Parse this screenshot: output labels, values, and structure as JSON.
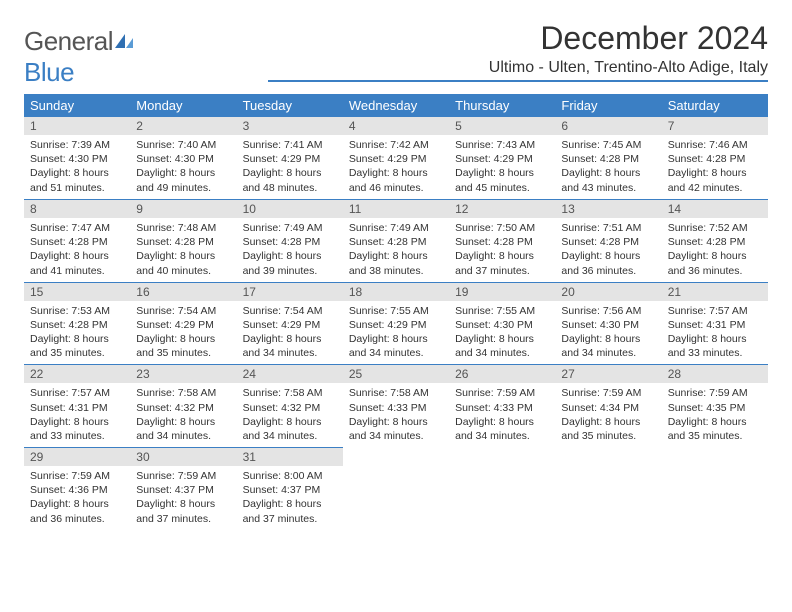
{
  "brand": {
    "part1": "General",
    "part2": "Blue"
  },
  "title": "December 2024",
  "location": "Ultimo - Ulten, Trentino-Alto Adige, Italy",
  "colors": {
    "accent": "#3b7fc4",
    "header_bg": "#3b7fc4",
    "daynum_bg": "#e4e4e4"
  },
  "weekdays": [
    "Sunday",
    "Monday",
    "Tuesday",
    "Wednesday",
    "Thursday",
    "Friday",
    "Saturday"
  ],
  "weeks": [
    [
      {
        "day": "1",
        "sunrise": "Sunrise: 7:39 AM",
        "sunset": "Sunset: 4:30 PM",
        "daylight": "Daylight: 8 hours and 51 minutes."
      },
      {
        "day": "2",
        "sunrise": "Sunrise: 7:40 AM",
        "sunset": "Sunset: 4:30 PM",
        "daylight": "Daylight: 8 hours and 49 minutes."
      },
      {
        "day": "3",
        "sunrise": "Sunrise: 7:41 AM",
        "sunset": "Sunset: 4:29 PM",
        "daylight": "Daylight: 8 hours and 48 minutes."
      },
      {
        "day": "4",
        "sunrise": "Sunrise: 7:42 AM",
        "sunset": "Sunset: 4:29 PM",
        "daylight": "Daylight: 8 hours and 46 minutes."
      },
      {
        "day": "5",
        "sunrise": "Sunrise: 7:43 AM",
        "sunset": "Sunset: 4:29 PM",
        "daylight": "Daylight: 8 hours and 45 minutes."
      },
      {
        "day": "6",
        "sunrise": "Sunrise: 7:45 AM",
        "sunset": "Sunset: 4:28 PM",
        "daylight": "Daylight: 8 hours and 43 minutes."
      },
      {
        "day": "7",
        "sunrise": "Sunrise: 7:46 AM",
        "sunset": "Sunset: 4:28 PM",
        "daylight": "Daylight: 8 hours and 42 minutes."
      }
    ],
    [
      {
        "day": "8",
        "sunrise": "Sunrise: 7:47 AM",
        "sunset": "Sunset: 4:28 PM",
        "daylight": "Daylight: 8 hours and 41 minutes."
      },
      {
        "day": "9",
        "sunrise": "Sunrise: 7:48 AM",
        "sunset": "Sunset: 4:28 PM",
        "daylight": "Daylight: 8 hours and 40 minutes."
      },
      {
        "day": "10",
        "sunrise": "Sunrise: 7:49 AM",
        "sunset": "Sunset: 4:28 PM",
        "daylight": "Daylight: 8 hours and 39 minutes."
      },
      {
        "day": "11",
        "sunrise": "Sunrise: 7:49 AM",
        "sunset": "Sunset: 4:28 PM",
        "daylight": "Daylight: 8 hours and 38 minutes."
      },
      {
        "day": "12",
        "sunrise": "Sunrise: 7:50 AM",
        "sunset": "Sunset: 4:28 PM",
        "daylight": "Daylight: 8 hours and 37 minutes."
      },
      {
        "day": "13",
        "sunrise": "Sunrise: 7:51 AM",
        "sunset": "Sunset: 4:28 PM",
        "daylight": "Daylight: 8 hours and 36 minutes."
      },
      {
        "day": "14",
        "sunrise": "Sunrise: 7:52 AM",
        "sunset": "Sunset: 4:28 PM",
        "daylight": "Daylight: 8 hours and 36 minutes."
      }
    ],
    [
      {
        "day": "15",
        "sunrise": "Sunrise: 7:53 AM",
        "sunset": "Sunset: 4:28 PM",
        "daylight": "Daylight: 8 hours and 35 minutes."
      },
      {
        "day": "16",
        "sunrise": "Sunrise: 7:54 AM",
        "sunset": "Sunset: 4:29 PM",
        "daylight": "Daylight: 8 hours and 35 minutes."
      },
      {
        "day": "17",
        "sunrise": "Sunrise: 7:54 AM",
        "sunset": "Sunset: 4:29 PM",
        "daylight": "Daylight: 8 hours and 34 minutes."
      },
      {
        "day": "18",
        "sunrise": "Sunrise: 7:55 AM",
        "sunset": "Sunset: 4:29 PM",
        "daylight": "Daylight: 8 hours and 34 minutes."
      },
      {
        "day": "19",
        "sunrise": "Sunrise: 7:55 AM",
        "sunset": "Sunset: 4:30 PM",
        "daylight": "Daylight: 8 hours and 34 minutes."
      },
      {
        "day": "20",
        "sunrise": "Sunrise: 7:56 AM",
        "sunset": "Sunset: 4:30 PM",
        "daylight": "Daylight: 8 hours and 34 minutes."
      },
      {
        "day": "21",
        "sunrise": "Sunrise: 7:57 AM",
        "sunset": "Sunset: 4:31 PM",
        "daylight": "Daylight: 8 hours and 33 minutes."
      }
    ],
    [
      {
        "day": "22",
        "sunrise": "Sunrise: 7:57 AM",
        "sunset": "Sunset: 4:31 PM",
        "daylight": "Daylight: 8 hours and 33 minutes."
      },
      {
        "day": "23",
        "sunrise": "Sunrise: 7:58 AM",
        "sunset": "Sunset: 4:32 PM",
        "daylight": "Daylight: 8 hours and 34 minutes."
      },
      {
        "day": "24",
        "sunrise": "Sunrise: 7:58 AM",
        "sunset": "Sunset: 4:32 PM",
        "daylight": "Daylight: 8 hours and 34 minutes."
      },
      {
        "day": "25",
        "sunrise": "Sunrise: 7:58 AM",
        "sunset": "Sunset: 4:33 PM",
        "daylight": "Daylight: 8 hours and 34 minutes."
      },
      {
        "day": "26",
        "sunrise": "Sunrise: 7:59 AM",
        "sunset": "Sunset: 4:33 PM",
        "daylight": "Daylight: 8 hours and 34 minutes."
      },
      {
        "day": "27",
        "sunrise": "Sunrise: 7:59 AM",
        "sunset": "Sunset: 4:34 PM",
        "daylight": "Daylight: 8 hours and 35 minutes."
      },
      {
        "day": "28",
        "sunrise": "Sunrise: 7:59 AM",
        "sunset": "Sunset: 4:35 PM",
        "daylight": "Daylight: 8 hours and 35 minutes."
      }
    ],
    [
      {
        "day": "29",
        "sunrise": "Sunrise: 7:59 AM",
        "sunset": "Sunset: 4:36 PM",
        "daylight": "Daylight: 8 hours and 36 minutes."
      },
      {
        "day": "30",
        "sunrise": "Sunrise: 7:59 AM",
        "sunset": "Sunset: 4:37 PM",
        "daylight": "Daylight: 8 hours and 37 minutes."
      },
      {
        "day": "31",
        "sunrise": "Sunrise: 8:00 AM",
        "sunset": "Sunset: 4:37 PM",
        "daylight": "Daylight: 8 hours and 37 minutes."
      },
      null,
      null,
      null,
      null
    ]
  ]
}
